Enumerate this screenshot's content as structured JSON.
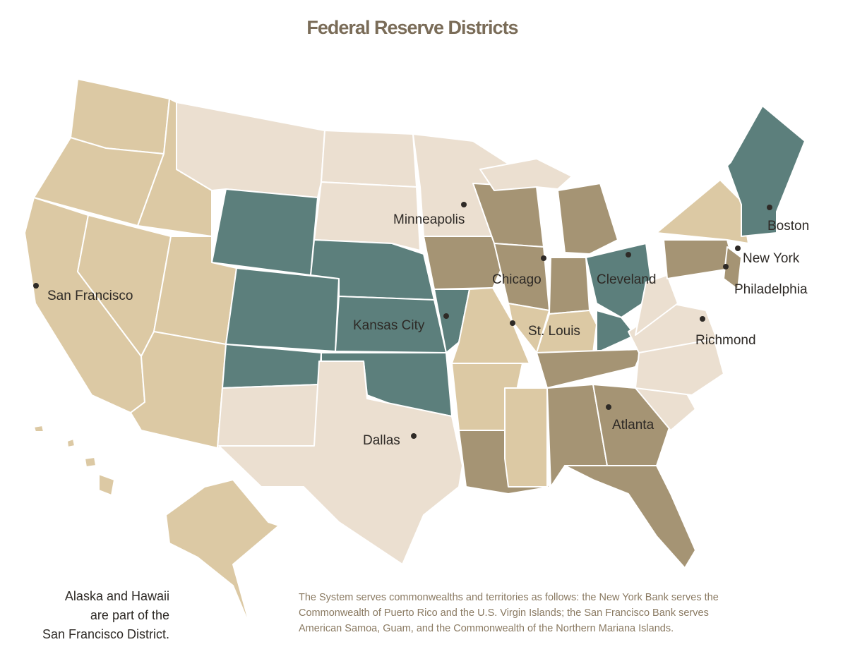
{
  "title": "Federal Reserve Districts",
  "cities": [
    "Minneapolis",
    "Chicago",
    "Cleveland",
    "Boston",
    "New York",
    "Philadelphia",
    "Richmond",
    "St. Louis",
    "Kansas City",
    "San Francisco",
    "Dallas",
    "Atlanta"
  ],
  "alaska_hawaii_note": [
    "Alaska and Hawaii",
    "are part of the",
    "San Francisco District."
  ],
  "territories_note": [
    "The System serves commonwealths and territories as follows: the New York Bank serves the",
    "Commonwealth of Puerto Rico and the U.S. Virgin  Islands; the San Francisco Bank serves",
    "American Samoa, Guam, and the Commonwealth of the Northern Mariana Islands."
  ]
}
